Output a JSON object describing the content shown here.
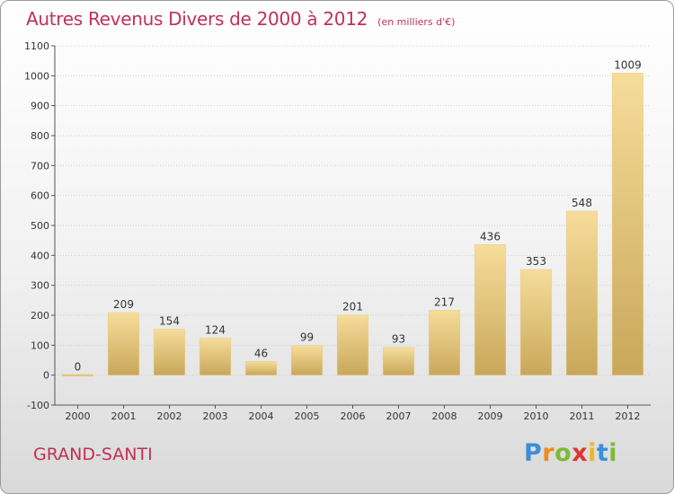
{
  "title": "Autres Revenus Divers de 2000 à 2012",
  "unit_note": "(en milliers d'€)",
  "commune": "GRAND-SANTI",
  "logo": {
    "text": "Proxiti",
    "letter_colors": [
      "#3a8fd6",
      "#f08a1c",
      "#7dbb35",
      "#e0322f",
      "#f0b81c",
      "#3a8fd6",
      "#7dbb35"
    ]
  },
  "colors": {
    "title": "#c0305b",
    "bar_light": "#f6dd9a",
    "bar_dark": "#c9a75a",
    "grid": "#cfcfcf"
  },
  "chart_data": {
    "type": "bar",
    "title": "Autres Revenus Divers de 2000 à 2012",
    "subtitle": "(en milliers d'€)",
    "categories": [
      "2000",
      "2001",
      "2002",
      "2003",
      "2004",
      "2005",
      "2006",
      "2007",
      "2008",
      "2009",
      "2010",
      "2011",
      "2012"
    ],
    "values": [
      0,
      209,
      154,
      124,
      46,
      99,
      201,
      93,
      217,
      436,
      353,
      548,
      1009
    ],
    "ylim": [
      -100,
      1100
    ],
    "yticks": [
      -100,
      0,
      100,
      200,
      300,
      400,
      500,
      600,
      700,
      800,
      900,
      1000,
      1100
    ],
    "grid": true,
    "xlabel": "",
    "ylabel": ""
  }
}
